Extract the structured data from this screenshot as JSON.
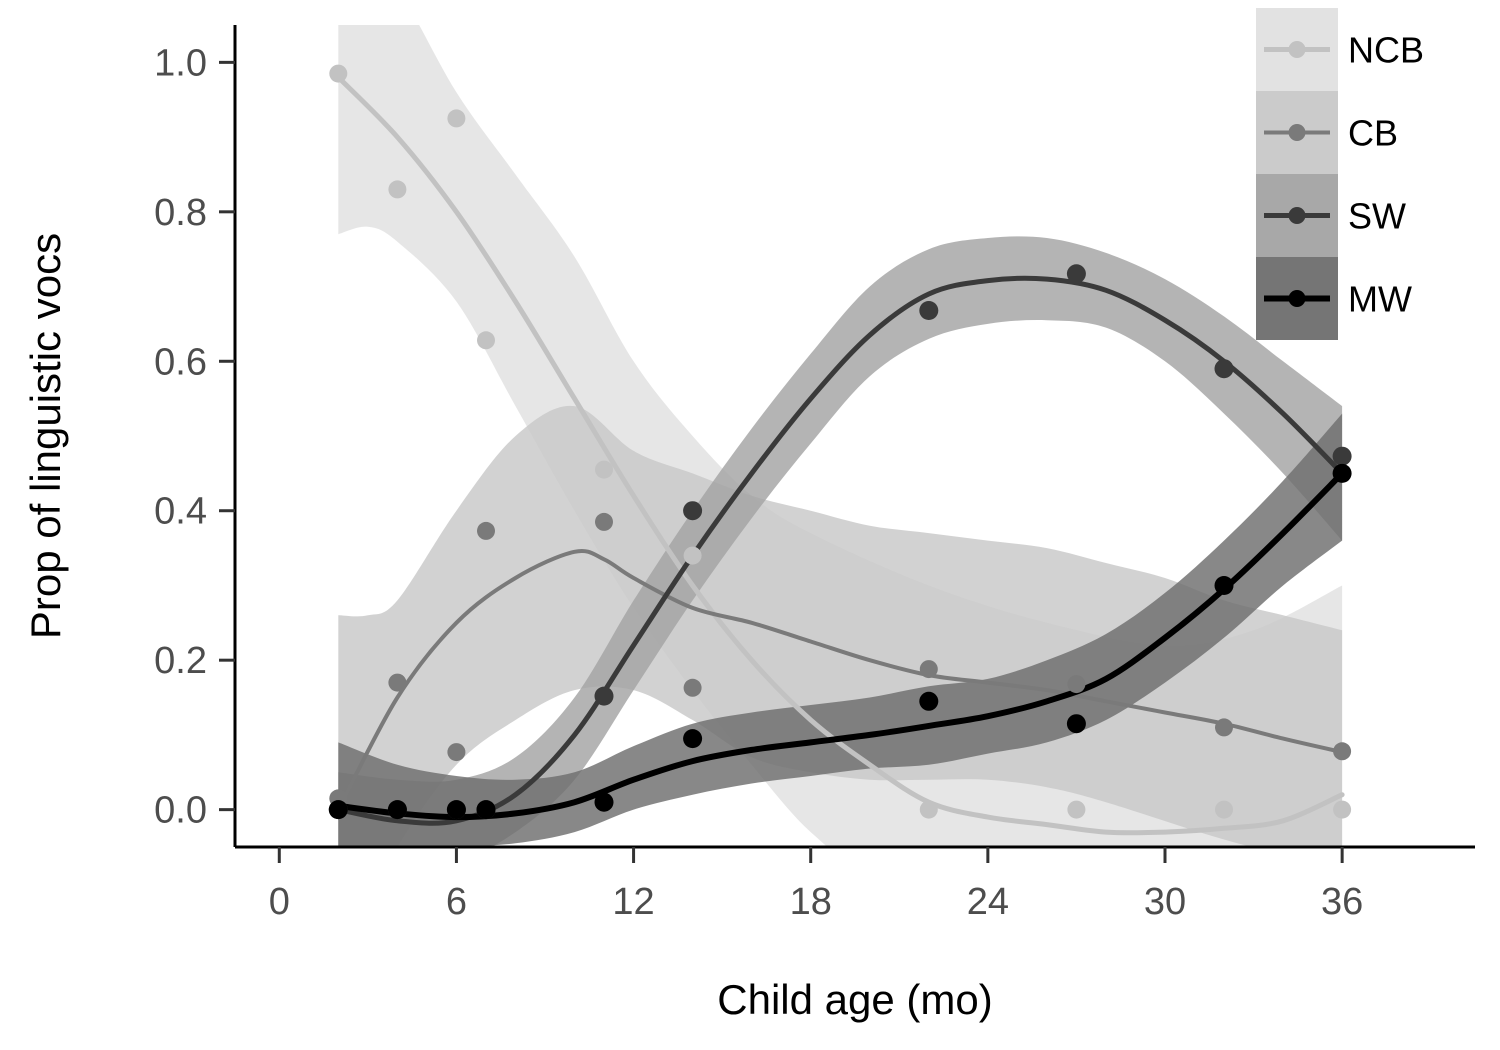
{
  "chart_data": {
    "type": "scatter",
    "xlabel": "Child age (mo)",
    "ylabel": "Prop of linguistic vocs",
    "xlim": [
      -1.5,
      40.5
    ],
    "ylim": [
      -0.05,
      1.05
    ],
    "xticks": [
      0,
      6,
      12,
      18,
      24,
      30,
      36
    ],
    "yticks": [
      0.0,
      0.2,
      0.4,
      0.6,
      0.8,
      1.0
    ],
    "xtick_labels": [
      "0",
      "6",
      "12",
      "18",
      "24",
      "30",
      "36"
    ],
    "ytick_labels": [
      "0.0",
      "0.2",
      "0.4",
      "0.6",
      "0.8",
      "1.0"
    ],
    "grid": false,
    "legend_position": "top-right",
    "smoothing": "loess with confidence band",
    "series": [
      {
        "name": "NCB",
        "color": "#c2c2c2",
        "band_color": "#e0e0e0",
        "points": [
          [
            2,
            0.985
          ],
          [
            4,
            0.83
          ],
          [
            6,
            0.925
          ],
          [
            7,
            0.628
          ],
          [
            11,
            0.455
          ],
          [
            14,
            0.34
          ],
          [
            22,
            0.0
          ],
          [
            27,
            0.0
          ],
          [
            32,
            0.0
          ],
          [
            36,
            0.0
          ]
        ],
        "fit": [
          [
            2,
            0.98
          ],
          [
            4,
            0.9
          ],
          [
            6,
            0.8
          ],
          [
            8,
            0.68
          ],
          [
            10,
            0.55
          ],
          [
            12,
            0.42
          ],
          [
            14,
            0.3
          ],
          [
            16,
            0.2
          ],
          [
            18,
            0.12
          ],
          [
            20,
            0.06
          ],
          [
            22,
            0.01
          ],
          [
            24,
            -0.01
          ],
          [
            26,
            -0.02
          ],
          [
            28,
            -0.03
          ],
          [
            30,
            -0.03
          ],
          [
            32,
            -0.025
          ],
          [
            34,
            -0.015
          ],
          [
            36,
            0.02
          ]
        ],
        "lower": [
          [
            2,
            0.77
          ],
          [
            3,
            0.78
          ],
          [
            4,
            0.76
          ],
          [
            6,
            0.68
          ],
          [
            8,
            0.54
          ],
          [
            10,
            0.4
          ],
          [
            12,
            0.27
          ],
          [
            14,
            0.16
          ],
          [
            16,
            0.06
          ],
          [
            18,
            -0.03
          ],
          [
            20,
            -0.08
          ],
          [
            24,
            -0.1
          ],
          [
            28,
            -0.1
          ],
          [
            32,
            -0.1
          ],
          [
            36,
            -0.2
          ]
        ],
        "upper": [
          [
            2,
            1.2
          ],
          [
            4,
            1.1
          ],
          [
            6,
            0.96
          ],
          [
            8,
            0.85
          ],
          [
            10,
            0.74
          ],
          [
            12,
            0.6
          ],
          [
            14,
            0.5
          ],
          [
            16,
            0.42
          ],
          [
            18,
            0.37
          ],
          [
            22,
            0.3
          ],
          [
            26,
            0.25
          ],
          [
            30,
            0.22
          ],
          [
            33,
            0.24
          ],
          [
            36,
            0.3
          ]
        ]
      },
      {
        "name": "CB",
        "color": "#7a7a7a",
        "band_color": "#c8c8c8",
        "points": [
          [
            2,
            0.015
          ],
          [
            4,
            0.17
          ],
          [
            6,
            0.077
          ],
          [
            7,
            0.373
          ],
          [
            11,
            0.385
          ],
          [
            14,
            0.163
          ],
          [
            22,
            0.188
          ],
          [
            27,
            0.168
          ],
          [
            32,
            0.11
          ],
          [
            36,
            0.078
          ]
        ],
        "fit": [
          [
            2,
            0.0
          ],
          [
            4,
            0.15
          ],
          [
            6,
            0.25
          ],
          [
            8,
            0.31
          ],
          [
            10,
            0.345
          ],
          [
            11,
            0.335
          ],
          [
            12,
            0.31
          ],
          [
            14,
            0.27
          ],
          [
            16,
            0.25
          ],
          [
            18,
            0.225
          ],
          [
            20,
            0.2
          ],
          [
            22,
            0.18
          ],
          [
            24,
            0.17
          ],
          [
            26,
            0.16
          ],
          [
            28,
            0.145
          ],
          [
            30,
            0.13
          ],
          [
            32,
            0.115
          ],
          [
            34,
            0.095
          ],
          [
            36,
            0.077
          ]
        ],
        "lower": [
          [
            2,
            -0.2
          ],
          [
            4,
            -0.05
          ],
          [
            6,
            0.06
          ],
          [
            8,
            0.12
          ],
          [
            10,
            0.16
          ],
          [
            12,
            0.16
          ],
          [
            14,
            0.12
          ],
          [
            16,
            0.07
          ],
          [
            18,
            0.05
          ],
          [
            20,
            0.04
          ],
          [
            22,
            0.04
          ],
          [
            24,
            0.04
          ],
          [
            26,
            0.03
          ],
          [
            28,
            0.01
          ],
          [
            32,
            -0.04
          ],
          [
            36,
            -0.08
          ]
        ],
        "upper": [
          [
            2,
            0.26
          ],
          [
            3,
            0.26
          ],
          [
            4,
            0.28
          ],
          [
            6,
            0.4
          ],
          [
            8,
            0.5
          ],
          [
            10,
            0.54
          ],
          [
            12,
            0.48
          ],
          [
            14,
            0.45
          ],
          [
            16,
            0.42
          ],
          [
            18,
            0.4
          ],
          [
            20,
            0.38
          ],
          [
            22,
            0.37
          ],
          [
            24,
            0.36
          ],
          [
            26,
            0.35
          ],
          [
            28,
            0.33
          ],
          [
            30,
            0.31
          ],
          [
            32,
            0.28
          ],
          [
            34,
            0.26
          ],
          [
            36,
            0.24
          ]
        ]
      },
      {
        "name": "SW",
        "color": "#3a3a3a",
        "band_color": "#a3a3a3",
        "points": [
          [
            2,
            0.0
          ],
          [
            4,
            0.0
          ],
          [
            6,
            0.0
          ],
          [
            7,
            0.0
          ],
          [
            11,
            0.152
          ],
          [
            14,
            0.4
          ],
          [
            22,
            0.668
          ],
          [
            27,
            0.717
          ],
          [
            32,
            0.59
          ],
          [
            36,
            0.473
          ]
        ],
        "fit": [
          [
            2,
            0.0
          ],
          [
            4,
            -0.015
          ],
          [
            6,
            -0.015
          ],
          [
            8,
            0.02
          ],
          [
            10,
            0.1
          ],
          [
            12,
            0.22
          ],
          [
            14,
            0.34
          ],
          [
            16,
            0.45
          ],
          [
            18,
            0.55
          ],
          [
            20,
            0.635
          ],
          [
            22,
            0.69
          ],
          [
            24,
            0.708
          ],
          [
            26,
            0.71
          ],
          [
            28,
            0.695
          ],
          [
            30,
            0.655
          ],
          [
            32,
            0.6
          ],
          [
            34,
            0.53
          ],
          [
            36,
            0.45
          ]
        ],
        "lower": [
          [
            2,
            -0.1
          ],
          [
            4,
            -0.08
          ],
          [
            6,
            -0.07
          ],
          [
            8,
            -0.03
          ],
          [
            10,
            0.04
          ],
          [
            12,
            0.16
          ],
          [
            14,
            0.28
          ],
          [
            16,
            0.39
          ],
          [
            18,
            0.49
          ],
          [
            20,
            0.58
          ],
          [
            22,
            0.63
          ],
          [
            24,
            0.65
          ],
          [
            26,
            0.655
          ],
          [
            28,
            0.645
          ],
          [
            30,
            0.6
          ],
          [
            32,
            0.53
          ],
          [
            34,
            0.45
          ],
          [
            36,
            0.36
          ]
        ],
        "upper": [
          [
            2,
            0.05
          ],
          [
            4,
            0.04
          ],
          [
            6,
            0.04
          ],
          [
            8,
            0.07
          ],
          [
            10,
            0.15
          ],
          [
            12,
            0.28
          ],
          [
            14,
            0.4
          ],
          [
            16,
            0.51
          ],
          [
            18,
            0.61
          ],
          [
            20,
            0.7
          ],
          [
            22,
            0.75
          ],
          [
            24,
            0.765
          ],
          [
            26,
            0.765
          ],
          [
            28,
            0.745
          ],
          [
            30,
            0.71
          ],
          [
            32,
            0.66
          ],
          [
            34,
            0.6
          ],
          [
            36,
            0.54
          ]
        ]
      },
      {
        "name": "MW",
        "color": "#000000",
        "band_color": "#6e6e6e",
        "points": [
          [
            2,
            0.0
          ],
          [
            4,
            0.0
          ],
          [
            6,
            0.0
          ],
          [
            7,
            0.0
          ],
          [
            11,
            0.01
          ],
          [
            14,
            0.095
          ],
          [
            22,
            0.145
          ],
          [
            27,
            0.115
          ],
          [
            32,
            0.3
          ],
          [
            36,
            0.45
          ]
        ],
        "fit": [
          [
            2,
            0.005
          ],
          [
            4,
            -0.005
          ],
          [
            6,
            -0.01
          ],
          [
            8,
            -0.005
          ],
          [
            10,
            0.01
          ],
          [
            12,
            0.04
          ],
          [
            14,
            0.065
          ],
          [
            16,
            0.08
          ],
          [
            18,
            0.09
          ],
          [
            20,
            0.1
          ],
          [
            22,
            0.112
          ],
          [
            24,
            0.125
          ],
          [
            26,
            0.145
          ],
          [
            28,
            0.175
          ],
          [
            30,
            0.23
          ],
          [
            32,
            0.295
          ],
          [
            34,
            0.37
          ],
          [
            36,
            0.45
          ]
        ],
        "lower": [
          [
            2,
            -0.05
          ],
          [
            4,
            -0.05
          ],
          [
            6,
            -0.05
          ],
          [
            8,
            -0.045
          ],
          [
            10,
            -0.03
          ],
          [
            12,
            0.0
          ],
          [
            14,
            0.02
          ],
          [
            16,
            0.035
          ],
          [
            18,
            0.045
          ],
          [
            20,
            0.055
          ],
          [
            22,
            0.06
          ],
          [
            24,
            0.075
          ],
          [
            26,
            0.09
          ],
          [
            28,
            0.12
          ],
          [
            30,
            0.17
          ],
          [
            32,
            0.23
          ],
          [
            34,
            0.3
          ],
          [
            36,
            0.36
          ]
        ],
        "upper": [
          [
            2,
            0.09
          ],
          [
            4,
            0.06
          ],
          [
            6,
            0.045
          ],
          [
            8,
            0.04
          ],
          [
            10,
            0.05
          ],
          [
            12,
            0.085
          ],
          [
            14,
            0.115
          ],
          [
            16,
            0.13
          ],
          [
            18,
            0.14
          ],
          [
            20,
            0.15
          ],
          [
            22,
            0.165
          ],
          [
            24,
            0.175
          ],
          [
            26,
            0.2
          ],
          [
            28,
            0.235
          ],
          [
            30,
            0.29
          ],
          [
            32,
            0.36
          ],
          [
            34,
            0.44
          ],
          [
            36,
            0.53
          ]
        ]
      }
    ]
  }
}
